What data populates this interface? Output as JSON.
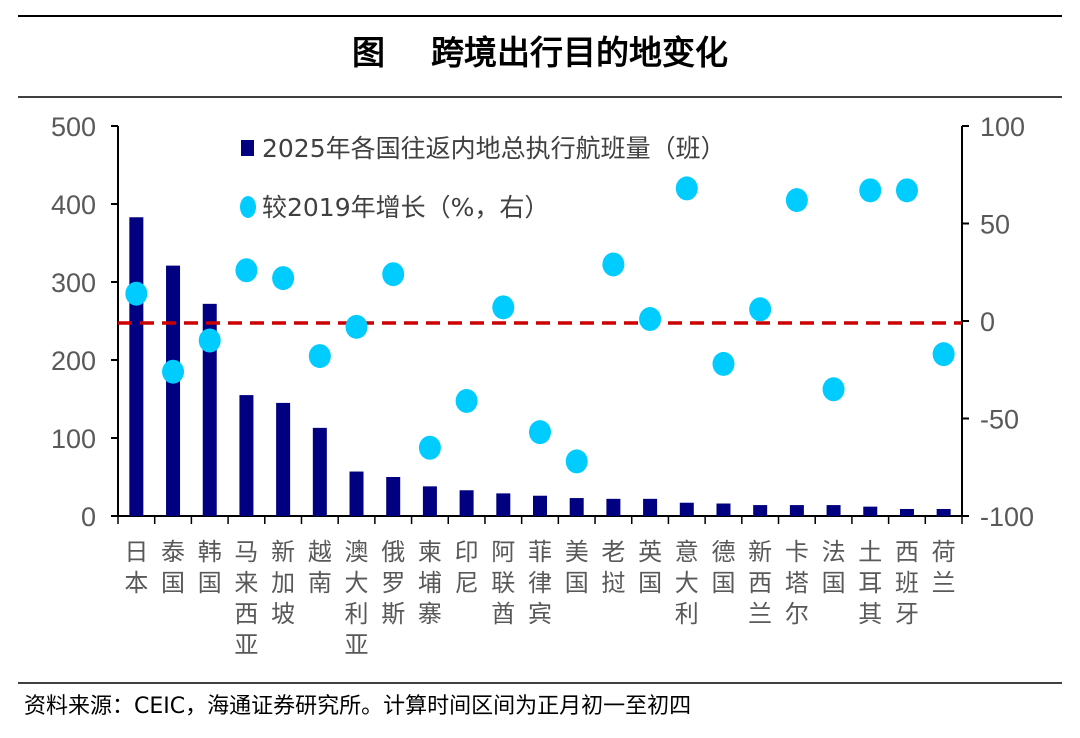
{
  "title": "图    跨境出行目的地变化",
  "source": "资料来源：CEIC，海通证券研究所。计算时间区间为正月初一至初四",
  "chart_data": {
    "type": "bar+scatter",
    "title": "跨境出行目的地变化",
    "categories": [
      "日本",
      "泰国",
      "韩国",
      "马来西亚",
      "新加坡",
      "越南",
      "澳大利亚",
      "俄罗斯",
      "柬埔寨",
      "印尼",
      "阿联酋",
      "菲律宾",
      "美国",
      "老挝",
      "英国",
      "意大利",
      "德国",
      "新西兰",
      "卡塔尔",
      "法国",
      "土耳其",
      "西班牙",
      "荷兰"
    ],
    "series": [
      {
        "name": "2025年各国往返内地总执行航班量（班）",
        "type": "bar",
        "axis": "left",
        "color": "#000080",
        "values": [
          383,
          321,
          272,
          155,
          145,
          113,
          57,
          50,
          38,
          33,
          29,
          26,
          23,
          22,
          22,
          17,
          16,
          14,
          14,
          14,
          12,
          9,
          9
        ]
      },
      {
        "name": "较2019年增长（%，右）",
        "type": "scatter",
        "axis": "right",
        "color": "#00CCFF",
        "values": [
          14,
          -26,
          -10,
          26,
          22,
          -18,
          -3,
          24,
          -65,
          -41,
          7,
          -57,
          -72,
          29,
          1,
          68,
          -22,
          6,
          62,
          -35,
          67,
          67,
          -17
        ]
      }
    ],
    "left_axis": {
      "ylim": [
        0,
        500
      ],
      "ticks": [
        "0",
        "100",
        "200",
        "300",
        "400",
        "500"
      ]
    },
    "right_axis": {
      "ylim": [
        -100,
        100
      ],
      "ticks": [
        "-100",
        "-50",
        "0",
        "50",
        "100"
      ]
    },
    "reference_line": {
      "value": 0,
      "axis": "right",
      "color": "#CC0000",
      "style": "dashed"
    },
    "legend_placement": "top-center",
    "grid": false
  }
}
